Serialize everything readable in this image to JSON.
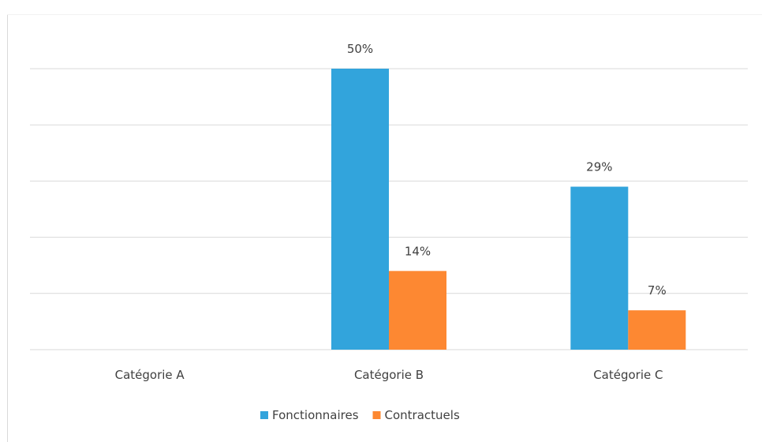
{
  "chart_data": {
    "type": "bar",
    "title": "",
    "xlabel": "",
    "ylabel": "",
    "categories": [
      "Catégorie A",
      "Catégorie B",
      "Catégorie C"
    ],
    "series": [
      {
        "name": "Fonctionnaires",
        "color": "#32a4dc",
        "values": [
          null,
          50,
          29
        ],
        "labels": [
          "",
          "50%",
          "29%"
        ]
      },
      {
        "name": "Contractuels",
        "color": "#fd8832",
        "values": [
          null,
          14,
          7
        ],
        "labels": [
          "",
          "14%",
          "7%"
        ]
      }
    ],
    "ylim": [
      0,
      50
    ],
    "value_unit": "%",
    "grid": true,
    "legend": "bottom-center"
  }
}
